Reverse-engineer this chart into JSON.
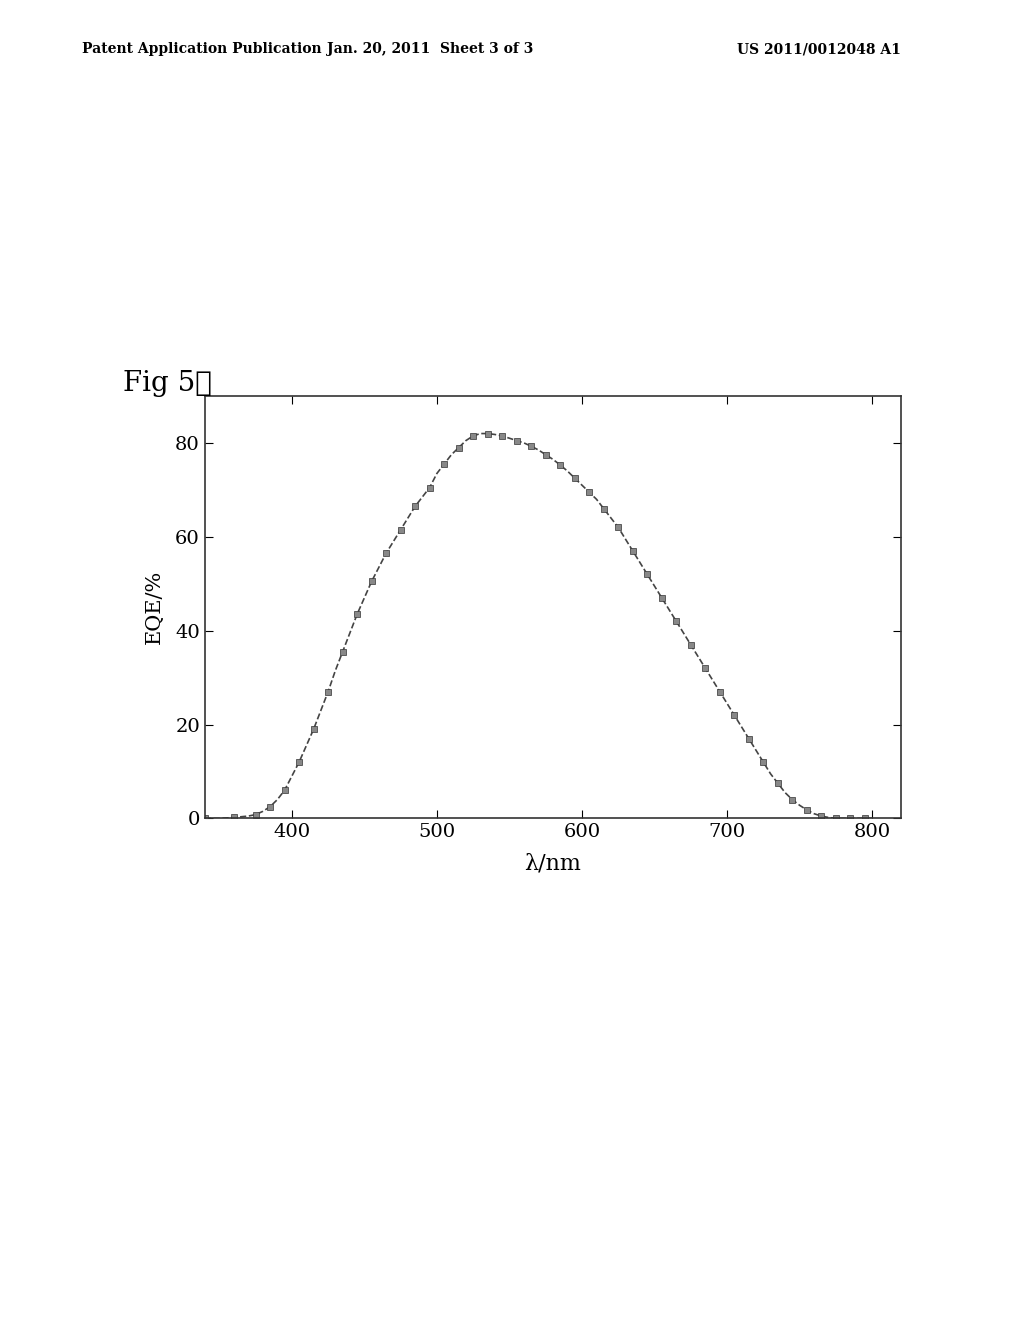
{
  "title_text": "Fig 5：",
  "header_left": "Patent Application Publication",
  "header_center": "Jan. 20, 2011  Sheet 3 of 3",
  "header_right": "US 2011/0012048 A1",
  "xlabel": "λ/nm",
  "ylabel": "EQE/%",
  "xlim": [
    340,
    820
  ],
  "ylim": [
    0,
    90
  ],
  "xticks": [
    400,
    500,
    600,
    700,
    800
  ],
  "yticks": [
    0,
    20,
    40,
    60,
    80
  ],
  "background_color": "#ffffff",
  "line_color": "#333333",
  "marker_color": "#555555",
  "curve_data_x": [
    340,
    350,
    360,
    370,
    375,
    380,
    385,
    390,
    395,
    400,
    405,
    410,
    415,
    420,
    425,
    430,
    435,
    440,
    445,
    450,
    455,
    460,
    465,
    470,
    475,
    480,
    485,
    490,
    495,
    500,
    505,
    510,
    515,
    520,
    525,
    530,
    535,
    540,
    545,
    550,
    555,
    560,
    565,
    570,
    575,
    580,
    585,
    590,
    595,
    600,
    605,
    610,
    615,
    620,
    625,
    630,
    635,
    640,
    645,
    650,
    655,
    660,
    665,
    670,
    675,
    680,
    685,
    690,
    695,
    700,
    705,
    710,
    715,
    720,
    725,
    730,
    735,
    740,
    745,
    750,
    755,
    760,
    765,
    770,
    775,
    780,
    785,
    790,
    795,
    800
  ],
  "curve_data_y": [
    0,
    0,
    0.2,
    0.5,
    0.8,
    1.5,
    2.5,
    4.0,
    6.0,
    9.0,
    12.0,
    15.5,
    19.0,
    23.0,
    27.0,
    31.5,
    35.5,
    39.5,
    43.5,
    47.0,
    50.5,
    53.5,
    56.5,
    59.0,
    61.5,
    64.0,
    66.5,
    68.5,
    70.5,
    73.5,
    75.5,
    77.5,
    79.0,
    80.5,
    81.5,
    82.0,
    82.0,
    81.8,
    81.5,
    81.0,
    80.5,
    80.0,
    79.3,
    78.5,
    77.5,
    76.5,
    75.3,
    74.0,
    72.5,
    71.0,
    69.5,
    68.0,
    66.0,
    64.0,
    62.0,
    59.5,
    57.0,
    54.5,
    52.0,
    49.5,
    47.0,
    44.5,
    42.0,
    39.5,
    37.0,
    34.5,
    32.0,
    29.5,
    27.0,
    24.5,
    22.0,
    19.5,
    17.0,
    14.5,
    12.0,
    9.5,
    7.5,
    5.5,
    4.0,
    2.8,
    1.8,
    1.0,
    0.5,
    0.2,
    0.0,
    0.0,
    0.0,
    0.0,
    0.0,
    0.0
  ]
}
